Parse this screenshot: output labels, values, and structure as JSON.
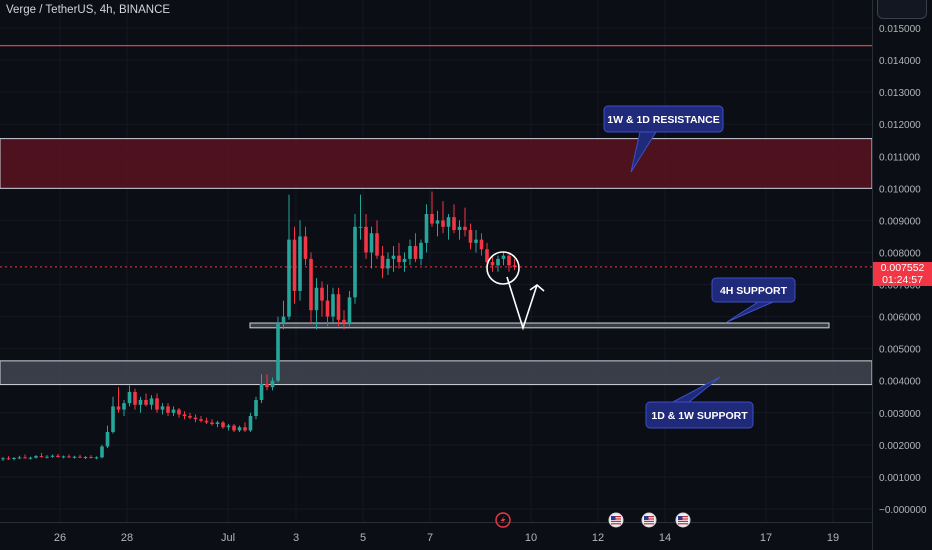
{
  "header": {
    "symbol": "Verge / TetherUS, 4h, BINANCE"
  },
  "last_price": {
    "price": "0.007552",
    "countdown": "01:24:57"
  },
  "colors": {
    "background": "#0c0e15",
    "up": "#26a69a",
    "down": "#f23645",
    "resistance_zone": "#5b1220",
    "support_zone": "#3e424d",
    "callout_fill": "#1f2a7a",
    "callout_border": "#3d4fc9",
    "axis_text": "#b2b5be",
    "grid": "#141822"
  },
  "event_icons": [
    "flash-icon",
    "us-flag-icon",
    "us-flag-icon",
    "us-flag-icon"
  ],
  "chart_data": {
    "type": "candlestick",
    "symbol": "Verge / TetherUS",
    "interval": "4h",
    "exchange": "BINANCE",
    "ylim": [
      -0.0005,
      0.0157
    ],
    "y_ticks": [
      "0.015000",
      "0.014000",
      "0.013000",
      "0.012000",
      "0.011000",
      "0.010000",
      "0.009000",
      "0.008000",
      "0.007000",
      "0.006000",
      "0.005000",
      "0.004000",
      "0.003000",
      "0.002000",
      "0.001000",
      "−0.000000"
    ],
    "x_ticks": [
      "26",
      "28",
      "Jul",
      "3",
      "5",
      "7",
      "10",
      "12",
      "14",
      "17",
      "19"
    ],
    "horizontal_lines": [
      {
        "price": 0.01445,
        "color": "#f23645"
      }
    ],
    "zones": [
      {
        "name": "resistance",
        "from": 0.01,
        "to": 0.01155,
        "label": "1W & 1D RESISTANCE"
      },
      {
        "name": "support-4h",
        "from": 0.00565,
        "to": 0.0058,
        "label": "4H SUPPORT"
      },
      {
        "name": "support-1d-1w",
        "from": 0.00388,
        "to": 0.00462,
        "label": "1D & 1W SUPPORT"
      }
    ],
    "candles": [
      {
        "o": 0.00155,
        "h": 0.00162,
        "l": 0.0015,
        "c": 0.00158
      },
      {
        "o": 0.00158,
        "h": 0.00165,
        "l": 0.00153,
        "c": 0.00156
      },
      {
        "o": 0.00156,
        "h": 0.00162,
        "l": 0.00152,
        "c": 0.00159
      },
      {
        "o": 0.00159,
        "h": 0.00166,
        "l": 0.00155,
        "c": 0.00161
      },
      {
        "o": 0.00161,
        "h": 0.0017,
        "l": 0.00157,
        "c": 0.00158
      },
      {
        "o": 0.00158,
        "h": 0.00163,
        "l": 0.00154,
        "c": 0.0016
      },
      {
        "o": 0.0016,
        "h": 0.00168,
        "l": 0.00157,
        "c": 0.00165
      },
      {
        "o": 0.00165,
        "h": 0.00175,
        "l": 0.0016,
        "c": 0.00162
      },
      {
        "o": 0.00162,
        "h": 0.00168,
        "l": 0.00158,
        "c": 0.00163
      },
      {
        "o": 0.00163,
        "h": 0.0017,
        "l": 0.0016,
        "c": 0.00166
      },
      {
        "o": 0.00166,
        "h": 0.00172,
        "l": 0.0016,
        "c": 0.00162
      },
      {
        "o": 0.00162,
        "h": 0.00167,
        "l": 0.00158,
        "c": 0.00164
      },
      {
        "o": 0.00164,
        "h": 0.0017,
        "l": 0.00159,
        "c": 0.00161
      },
      {
        "o": 0.00161,
        "h": 0.00166,
        "l": 0.00157,
        "c": 0.00163
      },
      {
        "o": 0.00163,
        "h": 0.00169,
        "l": 0.00159,
        "c": 0.0016
      },
      {
        "o": 0.0016,
        "h": 0.00165,
        "l": 0.00156,
        "c": 0.00162
      },
      {
        "o": 0.00162,
        "h": 0.00168,
        "l": 0.00158,
        "c": 0.00159
      },
      {
        "o": 0.00159,
        "h": 0.00164,
        "l": 0.00155,
        "c": 0.00161
      },
      {
        "o": 0.00161,
        "h": 0.002,
        "l": 0.00158,
        "c": 0.00195
      },
      {
        "o": 0.00195,
        "h": 0.0026,
        "l": 0.0019,
        "c": 0.0024
      },
      {
        "o": 0.0024,
        "h": 0.0035,
        "l": 0.00235,
        "c": 0.0032
      },
      {
        "o": 0.0032,
        "h": 0.0038,
        "l": 0.003,
        "c": 0.0031
      },
      {
        "o": 0.0031,
        "h": 0.0034,
        "l": 0.0029,
        "c": 0.0033
      },
      {
        "o": 0.0033,
        "h": 0.00385,
        "l": 0.0032,
        "c": 0.00365
      },
      {
        "o": 0.00365,
        "h": 0.00375,
        "l": 0.0031,
        "c": 0.00325
      },
      {
        "o": 0.00325,
        "h": 0.0035,
        "l": 0.003,
        "c": 0.0034
      },
      {
        "o": 0.0034,
        "h": 0.0036,
        "l": 0.0032,
        "c": 0.00325
      },
      {
        "o": 0.00325,
        "h": 0.00355,
        "l": 0.0031,
        "c": 0.00345
      },
      {
        "o": 0.00345,
        "h": 0.0036,
        "l": 0.003,
        "c": 0.0031
      },
      {
        "o": 0.0031,
        "h": 0.0033,
        "l": 0.00295,
        "c": 0.0032
      },
      {
        "o": 0.0032,
        "h": 0.0033,
        "l": 0.0029,
        "c": 0.003
      },
      {
        "o": 0.003,
        "h": 0.0032,
        "l": 0.0029,
        "c": 0.0031
      },
      {
        "o": 0.0031,
        "h": 0.00315,
        "l": 0.00285,
        "c": 0.00295
      },
      {
        "o": 0.00295,
        "h": 0.00305,
        "l": 0.0028,
        "c": 0.0029
      },
      {
        "o": 0.0029,
        "h": 0.003,
        "l": 0.0028,
        "c": 0.00285
      },
      {
        "o": 0.00285,
        "h": 0.00295,
        "l": 0.0027,
        "c": 0.0028
      },
      {
        "o": 0.0028,
        "h": 0.0029,
        "l": 0.0027,
        "c": 0.00275
      },
      {
        "o": 0.00275,
        "h": 0.00285,
        "l": 0.00265,
        "c": 0.0027
      },
      {
        "o": 0.0027,
        "h": 0.0028,
        "l": 0.0026,
        "c": 0.00265
      },
      {
        "o": 0.00265,
        "h": 0.00275,
        "l": 0.00255,
        "c": 0.0027
      },
      {
        "o": 0.0027,
        "h": 0.00275,
        "l": 0.0025,
        "c": 0.00255
      },
      {
        "o": 0.00255,
        "h": 0.00265,
        "l": 0.00245,
        "c": 0.0026
      },
      {
        "o": 0.0026,
        "h": 0.00265,
        "l": 0.0024,
        "c": 0.00245
      },
      {
        "o": 0.00245,
        "h": 0.0026,
        "l": 0.0024,
        "c": 0.00255
      },
      {
        "o": 0.00255,
        "h": 0.0027,
        "l": 0.0024,
        "c": 0.00245
      },
      {
        "o": 0.00245,
        "h": 0.003,
        "l": 0.0024,
        "c": 0.0029
      },
      {
        "o": 0.0029,
        "h": 0.0035,
        "l": 0.0028,
        "c": 0.0034
      },
      {
        "o": 0.0034,
        "h": 0.0042,
        "l": 0.0033,
        "c": 0.0039
      },
      {
        "o": 0.0039,
        "h": 0.0042,
        "l": 0.0037,
        "c": 0.0038
      },
      {
        "o": 0.0038,
        "h": 0.0041,
        "l": 0.0037,
        "c": 0.004
      },
      {
        "o": 0.004,
        "h": 0.006,
        "l": 0.00395,
        "c": 0.0058
      },
      {
        "o": 0.0058,
        "h": 0.0065,
        "l": 0.0056,
        "c": 0.006
      },
      {
        "o": 0.006,
        "h": 0.0098,
        "l": 0.0059,
        "c": 0.0084
      },
      {
        "o": 0.0084,
        "h": 0.0088,
        "l": 0.0064,
        "c": 0.0068
      },
      {
        "o": 0.0068,
        "h": 0.009,
        "l": 0.0065,
        "c": 0.0085
      },
      {
        "o": 0.0085,
        "h": 0.0088,
        "l": 0.0076,
        "c": 0.0078
      },
      {
        "o": 0.0078,
        "h": 0.008,
        "l": 0.0058,
        "c": 0.0062
      },
      {
        "o": 0.0062,
        "h": 0.0072,
        "l": 0.0056,
        "c": 0.0069
      },
      {
        "o": 0.0069,
        "h": 0.0071,
        "l": 0.006,
        "c": 0.0065
      },
      {
        "o": 0.0065,
        "h": 0.007,
        "l": 0.0057,
        "c": 0.006
      },
      {
        "o": 0.006,
        "h": 0.0069,
        "l": 0.0058,
        "c": 0.0067
      },
      {
        "o": 0.0067,
        "h": 0.0069,
        "l": 0.0057,
        "c": 0.0059
      },
      {
        "o": 0.0059,
        "h": 0.0062,
        "l": 0.0056,
        "c": 0.0058
      },
      {
        "o": 0.0058,
        "h": 0.0068,
        "l": 0.0057,
        "c": 0.0066
      },
      {
        "o": 0.0066,
        "h": 0.0092,
        "l": 0.0064,
        "c": 0.0088
      },
      {
        "o": 0.0088,
        "h": 0.0098,
        "l": 0.0084,
        "c": 0.0088
      },
      {
        "o": 0.0088,
        "h": 0.0092,
        "l": 0.0078,
        "c": 0.008
      },
      {
        "o": 0.008,
        "h": 0.0088,
        "l": 0.0075,
        "c": 0.0086
      },
      {
        "o": 0.0086,
        "h": 0.009,
        "l": 0.0078,
        "c": 0.0079
      },
      {
        "o": 0.0079,
        "h": 0.0082,
        "l": 0.0072,
        "c": 0.0075
      },
      {
        "o": 0.0075,
        "h": 0.008,
        "l": 0.0073,
        "c": 0.0078
      },
      {
        "o": 0.0078,
        "h": 0.0082,
        "l": 0.0074,
        "c": 0.0079
      },
      {
        "o": 0.0079,
        "h": 0.0083,
        "l": 0.0075,
        "c": 0.0077
      },
      {
        "o": 0.0077,
        "h": 0.008,
        "l": 0.0074,
        "c": 0.0078
      },
      {
        "o": 0.0078,
        "h": 0.0084,
        "l": 0.0076,
        "c": 0.0082
      },
      {
        "o": 0.0082,
        "h": 0.0086,
        "l": 0.0077,
        "c": 0.0078
      },
      {
        "o": 0.0078,
        "h": 0.0084,
        "l": 0.0076,
        "c": 0.0083
      },
      {
        "o": 0.0083,
        "h": 0.0095,
        "l": 0.008,
        "c": 0.0092
      },
      {
        "o": 0.0092,
        "h": 0.0099,
        "l": 0.0088,
        "c": 0.0089
      },
      {
        "o": 0.0089,
        "h": 0.0093,
        "l": 0.0085,
        "c": 0.009
      },
      {
        "o": 0.009,
        "h": 0.0096,
        "l": 0.0086,
        "c": 0.0088
      },
      {
        "o": 0.0088,
        "h": 0.0092,
        "l": 0.0084,
        "c": 0.0091
      },
      {
        "o": 0.0091,
        "h": 0.0095,
        "l": 0.0086,
        "c": 0.0087
      },
      {
        "o": 0.0087,
        "h": 0.009,
        "l": 0.0084,
        "c": 0.0088
      },
      {
        "o": 0.0088,
        "h": 0.0094,
        "l": 0.0085,
        "c": 0.0087
      },
      {
        "o": 0.0087,
        "h": 0.0089,
        "l": 0.0081,
        "c": 0.0083
      },
      {
        "o": 0.0083,
        "h": 0.0087,
        "l": 0.008,
        "c": 0.0084
      },
      {
        "o": 0.0084,
        "h": 0.0086,
        "l": 0.0079,
        "c": 0.0081
      },
      {
        "o": 0.0081,
        "h": 0.0083,
        "l": 0.0076,
        "c": 0.0077
      },
      {
        "o": 0.0077,
        "h": 0.0079,
        "l": 0.0074,
        "c": 0.0076
      },
      {
        "o": 0.0076,
        "h": 0.0079,
        "l": 0.0074,
        "c": 0.0078
      },
      {
        "o": 0.0078,
        "h": 0.008,
        "l": 0.0076,
        "c": 0.0079
      },
      {
        "o": 0.0079,
        "h": 0.008,
        "l": 0.0074,
        "c": 0.0076
      },
      {
        "o": 0.0076,
        "h": 0.0078,
        "l": 0.00745,
        "c": 0.007552
      }
    ]
  }
}
